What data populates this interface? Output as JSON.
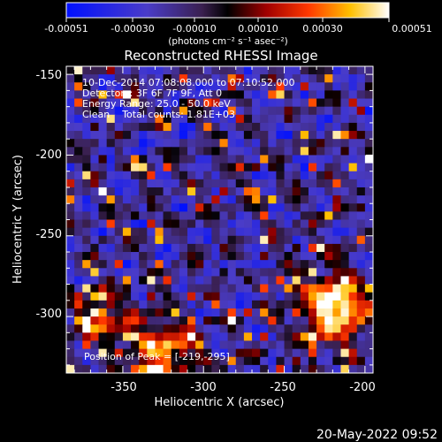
{
  "colorbar": {
    "ticks": [
      "-0.00051",
      "-0.00030",
      "-0.00010",
      "0.00010",
      "0.00030",
      "0.00051"
    ],
    "units": "(photons cm⁻² s⁻¹ asec⁻²)",
    "vmin": -0.00051,
    "vmax": 0.00051
  },
  "chart_data": {
    "type": "heatmap",
    "title": "Reconstructed RHESSI Image",
    "xlabel": "Heliocentric X (arcsec)",
    "ylabel": "Heliocentric Y (arcsec)",
    "xlim": [
      -385,
      -195
    ],
    "ylim": [
      -335,
      -145
    ],
    "xticks": [
      -350,
      -300,
      -250,
      -200
    ],
    "yticks": [
      -150,
      -200,
      -250,
      -300
    ],
    "colormap": "blue-purple-black-red-orange-yellow-white",
    "annotations": [
      "10-Dec-2014 07:08:08.000 to 07:10:52.000",
      "Detectors: 3F 6F 7F 9F, Att 0",
      "Energy Range: 25.0 - 50.0 keV",
      "Clean    Total counts: 1.81E+03"
    ],
    "peak_label": "Position of Peak = [-219,-295]",
    "peak": [
      -219,
      -295
    ]
  },
  "footer": {
    "date": "20-May-2022 09:52"
  }
}
